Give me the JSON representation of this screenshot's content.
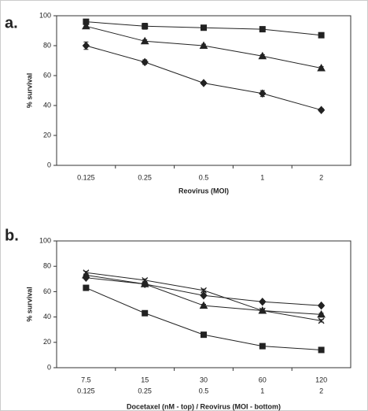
{
  "charts": [
    {
      "type": "line",
      "panel_label": "a.",
      "y_label": "% survival",
      "x_label": "Reovirus (MOI)",
      "categories": [
        "0.125",
        "0.25",
        "0.5",
        "1",
        "2"
      ],
      "ylim": [
        0,
        100
      ],
      "yticks": [
        0,
        20,
        40,
        60,
        80,
        100
      ],
      "series": [
        {
          "marker": "square",
          "color": "#222222",
          "values": [
            96,
            93,
            92,
            91,
            87
          ],
          "errors": [
            1.5,
            2,
            1.5,
            1.5,
            1
          ]
        },
        {
          "marker": "triangle",
          "color": "#222222",
          "values": [
            93,
            83,
            80,
            73,
            65
          ],
          "errors": [
            1,
            1,
            1,
            1,
            1
          ]
        },
        {
          "marker": "diamond",
          "color": "#222222",
          "values": [
            80,
            69,
            55,
            48,
            37
          ],
          "errors": [
            2.5,
            1.5,
            1,
            2,
            1
          ]
        }
      ]
    },
    {
      "type": "line",
      "panel_label": "b.",
      "y_label": "% survival",
      "x_label": "Docetaxel (nM - top) / Reovirus (MOI - bottom)",
      "categories": [
        "7.5",
        "15",
        "30",
        "60",
        "120"
      ],
      "categories2": [
        "0.125",
        "0.25",
        "0.5",
        "1",
        "2"
      ],
      "ylim": [
        0,
        100
      ],
      "yticks": [
        0,
        20,
        40,
        60,
        80,
        100
      ],
      "series": [
        {
          "marker": "square",
          "color": "#222222",
          "values": [
            63,
            43,
            26,
            17,
            14
          ],
          "errors": [
            2,
            1,
            1,
            1,
            1
          ]
        },
        {
          "marker": "triangle",
          "color": "#222222",
          "values": [
            73,
            66,
            49,
            45,
            42
          ],
          "errors": [
            1,
            1,
            1,
            1,
            1
          ]
        },
        {
          "marker": "diamond",
          "color": "#222222",
          "values": [
            71,
            66,
            57,
            52,
            49
          ],
          "errors": [
            1,
            1,
            1,
            1,
            1
          ]
        },
        {
          "marker": "cross",
          "color": "#222222",
          "values": [
            75,
            69,
            61,
            45,
            37
          ],
          "errors": [
            1,
            1,
            1,
            1,
            1
          ]
        }
      ]
    }
  ]
}
